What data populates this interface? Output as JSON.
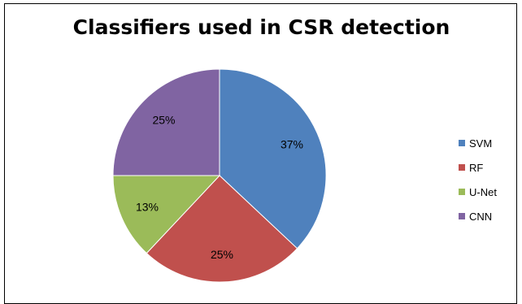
{
  "chart_data": {
    "type": "pie",
    "title": "Classifiers used in CSR detection",
    "categories": [
      "SVM",
      "RF",
      "U-Net",
      "CNN"
    ],
    "values": [
      37,
      25,
      13,
      25
    ],
    "labels": [
      "37%",
      "25%",
      "13%",
      "25%"
    ],
    "colors": [
      "#4f81bd",
      "#c0504d",
      "#9bbb59",
      "#8064a2"
    ],
    "legend_position": "right"
  }
}
